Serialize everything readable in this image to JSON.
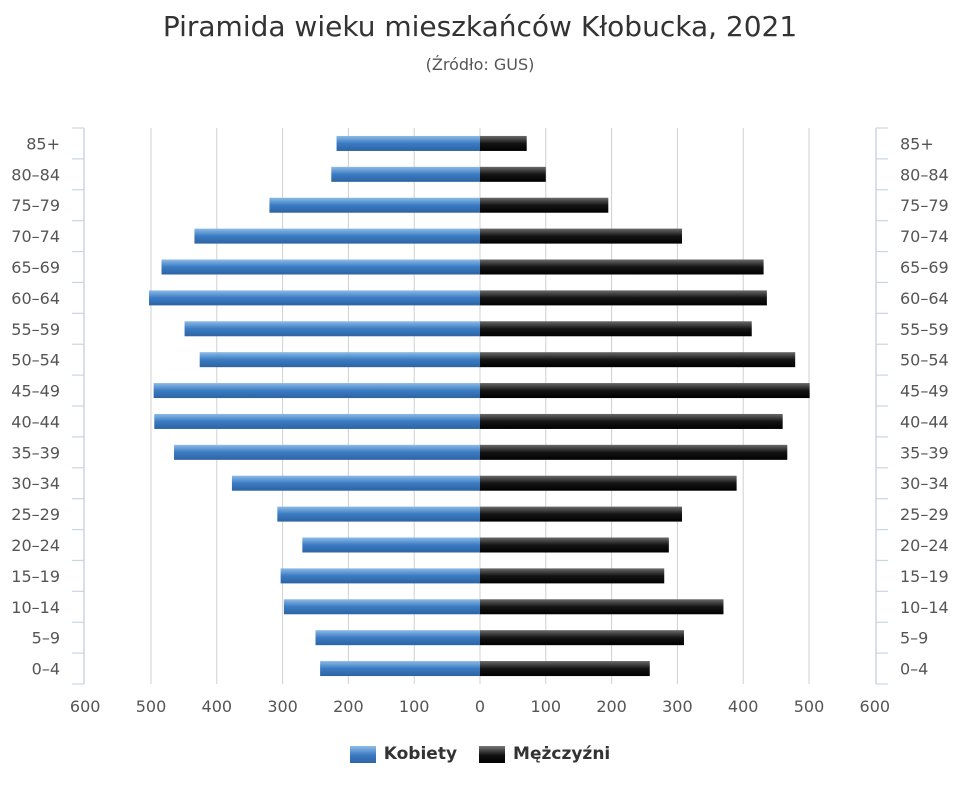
{
  "title": "Piramida wieku mieszkańców Kłobucka, 2021",
  "subtitle": "(Źródło: GUS)",
  "colors": {
    "female": "#3a78c0",
    "male": "#111111",
    "grid": "#d0d0d0",
    "axis_tick": "#c0d0e0"
  },
  "legend": {
    "female_label": "Kobiety",
    "male_label": "Mężczyźni",
    "placement": "bottom-center"
  },
  "chart_data": {
    "type": "bar",
    "orientation": "horizontal-pyramid",
    "categories": [
      "0–4",
      "5–9",
      "10–14",
      "15–19",
      "20–24",
      "25–29",
      "30–34",
      "35–39",
      "40–44",
      "45–49",
      "50–54",
      "55–59",
      "60–64",
      "65–69",
      "70–74",
      "75–79",
      "80–84",
      "85+"
    ],
    "series": [
      {
        "name": "Kobiety",
        "side": "left",
        "values": [
          243,
          250,
          298,
          303,
          270,
          308,
          377,
          465,
          495,
          496,
          426,
          449,
          503,
          484,
          434,
          320,
          226,
          218
        ]
      },
      {
        "name": "Mężczyźni",
        "side": "right",
        "values": [
          258,
          310,
          370,
          280,
          287,
          307,
          390,
          467,
          460,
          501,
          479,
          413,
          436,
          431,
          307,
          195,
          100,
          71
        ]
      }
    ],
    "xlim": [
      -600,
      600
    ],
    "xticks": [
      600,
      500,
      400,
      300,
      200,
      100,
      0,
      100,
      200,
      300,
      400,
      500,
      600
    ],
    "grid": true
  }
}
